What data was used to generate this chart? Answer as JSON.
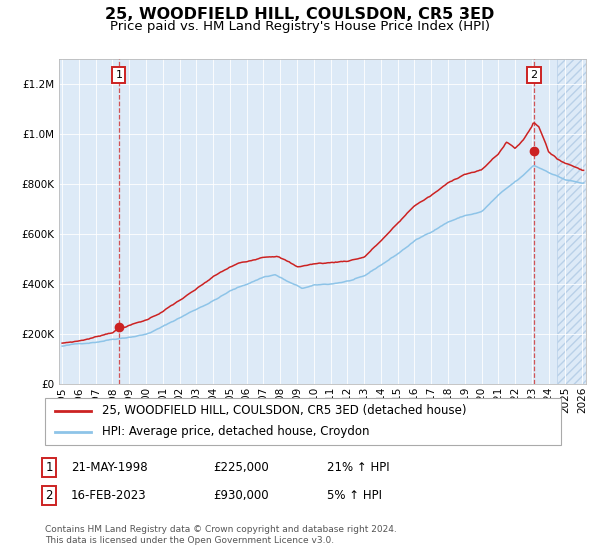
{
  "title": "25, WOODFIELD HILL, COULSDON, CR5 3ED",
  "subtitle": "Price paid vs. HM Land Registry's House Price Index (HPI)",
  "ylim": [
    0,
    1300000
  ],
  "xlim_start": 1994.8,
  "xlim_end": 2026.2,
  "hpi_color": "#8ec4e8",
  "price_color": "#cc2222",
  "sale1_date": 1998.38,
  "sale1_price": 225000,
  "sale2_date": 2023.12,
  "sale2_price": 930000,
  "bg_color": "#ddeaf7",
  "hatch_start": 2024.5,
  "grid_color": "#ffffff",
  "legend_label1": "25, WOODFIELD HILL, COULSDON, CR5 3ED (detached house)",
  "legend_label2": "HPI: Average price, detached house, Croydon",
  "note1_date": "21-MAY-1998",
  "note1_price": "£225,000",
  "note1_hpi": "21% ↑ HPI",
  "note2_date": "16-FEB-2023",
  "note2_price": "£930,000",
  "note2_hpi": "5% ↑ HPI",
  "footer": "Contains HM Land Registry data © Crown copyright and database right 2024.\nThis data is licensed under the Open Government Licence v3.0.",
  "title_fontsize": 11.5,
  "subtitle_fontsize": 9.5,
  "tick_fontsize": 7.5,
  "legend_fontsize": 8.5,
  "note_fontsize": 8.5,
  "footer_fontsize": 6.5
}
